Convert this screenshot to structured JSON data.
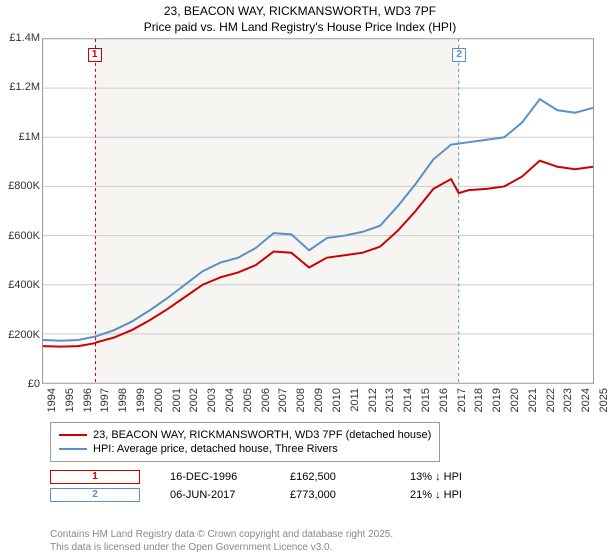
{
  "title_line1": "23, BEACON WAY, RICKMANSWORTH, WD3 7PF",
  "title_line2": "Price paid vs. HM Land Registry's House Price Index (HPI)",
  "chart": {
    "type": "line",
    "background_color": "#ffffff",
    "plot_fill": "#f6f5f2",
    "plot_fill_start_year": 1996.96,
    "plot_fill_end_year": 2017.43,
    "grid_color": "#cccccc",
    "border_color": "#999999",
    "x_axis": {
      "min": 1994,
      "max": 2025,
      "ticks": [
        1994,
        1995,
        1996,
        1997,
        1998,
        1999,
        2000,
        2001,
        2002,
        2003,
        2004,
        2005,
        2006,
        2007,
        2008,
        2009,
        2010,
        2011,
        2012,
        2013,
        2014,
        2015,
        2016,
        2017,
        2018,
        2019,
        2020,
        2021,
        2022,
        2023,
        2024,
        2025
      ],
      "label_fontsize": 11,
      "label_rotation": -90
    },
    "y_axis": {
      "min": 0,
      "max": 1400000,
      "ticks": [
        0,
        200000,
        400000,
        600000,
        800000,
        1000000,
        1200000,
        1400000
      ],
      "tick_labels": [
        "£0",
        "£200K",
        "£400K",
        "£600K",
        "£800K",
        "£1M",
        "£1.2M",
        "£1.4M"
      ],
      "label_fontsize": 11
    },
    "series": [
      {
        "name": "price_paid",
        "color": "#cc0000",
        "line_width": 2,
        "points": [
          [
            1994,
            150000
          ],
          [
            1995,
            148000
          ],
          [
            1996,
            150000
          ],
          [
            1996.96,
            162500
          ],
          [
            1997,
            165000
          ],
          [
            1998,
            185000
          ],
          [
            1999,
            215000
          ],
          [
            2000,
            255000
          ],
          [
            2001,
            300000
          ],
          [
            2002,
            350000
          ],
          [
            2003,
            400000
          ],
          [
            2004,
            430000
          ],
          [
            2005,
            450000
          ],
          [
            2006,
            480000
          ],
          [
            2007,
            535000
          ],
          [
            2008,
            530000
          ],
          [
            2009,
            470000
          ],
          [
            2010,
            510000
          ],
          [
            2011,
            520000
          ],
          [
            2012,
            530000
          ],
          [
            2013,
            555000
          ],
          [
            2014,
            620000
          ],
          [
            2015,
            700000
          ],
          [
            2016,
            790000
          ],
          [
            2017,
            830000
          ],
          [
            2017.43,
            773000
          ],
          [
            2018,
            785000
          ],
          [
            2019,
            790000
          ],
          [
            2020,
            800000
          ],
          [
            2021,
            840000
          ],
          [
            2022,
            905000
          ],
          [
            2023,
            880000
          ],
          [
            2024,
            870000
          ],
          [
            2025,
            880000
          ]
        ]
      },
      {
        "name": "hpi",
        "color": "#5b8fc7",
        "line_width": 2,
        "points": [
          [
            1994,
            175000
          ],
          [
            1995,
            172000
          ],
          [
            1996,
            175000
          ],
          [
            1997,
            190000
          ],
          [
            1998,
            215000
          ],
          [
            1999,
            250000
          ],
          [
            2000,
            295000
          ],
          [
            2001,
            345000
          ],
          [
            2002,
            400000
          ],
          [
            2003,
            455000
          ],
          [
            2004,
            490000
          ],
          [
            2005,
            510000
          ],
          [
            2006,
            550000
          ],
          [
            2007,
            610000
          ],
          [
            2008,
            605000
          ],
          [
            2009,
            540000
          ],
          [
            2010,
            590000
          ],
          [
            2011,
            600000
          ],
          [
            2012,
            615000
          ],
          [
            2013,
            640000
          ],
          [
            2014,
            720000
          ],
          [
            2015,
            810000
          ],
          [
            2016,
            910000
          ],
          [
            2017,
            970000
          ],
          [
            2018,
            980000
          ],
          [
            2019,
            990000
          ],
          [
            2020,
            1000000
          ],
          [
            2021,
            1060000
          ],
          [
            2022,
            1155000
          ],
          [
            2023,
            1110000
          ],
          [
            2024,
            1100000
          ],
          [
            2025,
            1120000
          ]
        ]
      }
    ],
    "markers": [
      {
        "id": "1",
        "year": 1996.96,
        "box_color": "#cc0000",
        "vline_color": "#cc0000"
      },
      {
        "id": "2",
        "year": 2017.43,
        "box_color": "#5b8fc7",
        "vline_color": "#5b8fc7"
      }
    ]
  },
  "legend": {
    "items": [
      {
        "color": "#cc0000",
        "label": "23, BEACON WAY, RICKMANSWORTH, WD3 7PF (detached house)"
      },
      {
        "color": "#5b8fc7",
        "label": "HPI: Average price, detached house, Three Rivers"
      }
    ]
  },
  "transactions": [
    {
      "id": "1",
      "box_color": "#cc0000",
      "date": "16-DEC-1996",
      "price": "£162,500",
      "delta": "13% ↓ HPI"
    },
    {
      "id": "2",
      "box_color": "#5b8fc7",
      "date": "06-JUN-2017",
      "price": "£773,000",
      "delta": "21% ↓ HPI"
    }
  ],
  "footer_line1": "Contains HM Land Registry data © Crown copyright and database right 2025.",
  "footer_line2": "This data is licensed under the Open Government Licence v3.0."
}
